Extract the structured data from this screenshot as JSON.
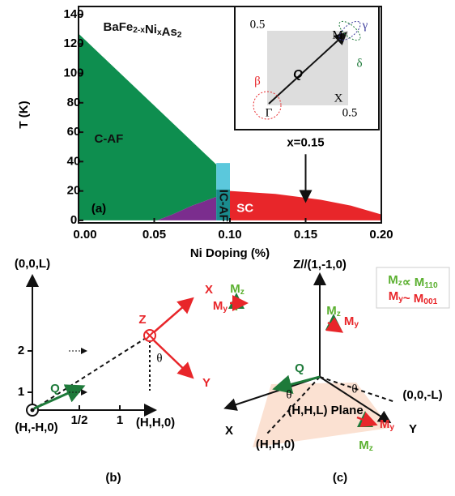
{
  "chart_data": {
    "type": "area",
    "title": [
      {
        "base": "BaFe",
        "sub": "2-x"
      },
      {
        "base": "Ni",
        "sub": "x"
      },
      {
        "base": "As",
        "sub": "2"
      }
    ],
    "panel_label": "(a)",
    "xlabel": "Ni Doping (%)",
    "ylabel": "T (K)",
    "xlim": [
      0,
      0.2
    ],
    "ylim": [
      -1.7,
      145.5
    ],
    "xticks": [
      {
        "value": 0,
        "label": "0.00"
      },
      {
        "value": 0.05,
        "label": "0.05"
      },
      {
        "value": 0.1,
        "label": "0.10"
      },
      {
        "value": 0.15,
        "label": "0.15"
      },
      {
        "value": 0.2,
        "label": "0.20"
      }
    ],
    "yticks": [
      0,
      20,
      40,
      60,
      80,
      100,
      120,
      140
    ],
    "regions": [
      {
        "name": "C-AF",
        "color": "#0e8e4f",
        "x": [
          0,
          0.091,
          0.091,
          0.075,
          0.062,
          0.052,
          0
        ],
        "y": [
          127,
          38,
          16,
          10,
          4,
          0,
          0
        ]
      },
      {
        "color": "#7b2d8e",
        "x": [
          0.052,
          0.062,
          0.075,
          0.091,
          0.091
        ],
        "y": [
          0,
          4,
          10,
          16,
          0
        ]
      },
      {
        "color": "#5bc8dc",
        "x": [
          0.091,
          0.1,
          0.1,
          0.091
        ],
        "y": [
          39,
          39,
          0,
          0
        ]
      },
      {
        "name": "IC-AF",
        "color": "#1b8c8e",
        "x": [
          0.091,
          0.1,
          0.1,
          0.091
        ],
        "y": [
          21,
          21,
          0,
          0
        ]
      },
      {
        "name": "SC",
        "color": "#e8262a",
        "x": [
          0.1,
          0.1,
          0.13,
          0.16,
          0.18,
          0.2,
          0.2
        ],
        "y": [
          0,
          20,
          18,
          14,
          10,
          4,
          0
        ]
      }
    ],
    "annotation": {
      "text": "x=0.15",
      "x": 0.15,
      "y_from": 45,
      "y_to": 14
    }
  },
  "inset": {
    "corner_top": "0.5",
    "m": "M",
    "gamma": "γ",
    "delta": "δ",
    "beta": "β",
    "big_gamma": "Γ",
    "q": "Q",
    "x": "X",
    "corner_right": "0.5"
  },
  "panel_b": {
    "l_axis": "(0,0,L)",
    "tick_2": "2",
    "tick_1": "1",
    "q": "Q",
    "z": "Z",
    "x": "X",
    "y": "Y",
    "theta": "θ",
    "origin": "(H,-H,0)",
    "tick_half": "1/2",
    "tick_h1": "1",
    "h_axis": "(H,H,0)",
    "label": "(b)"
  },
  "panel_c": {
    "z_axis": "Z//(1,-1,0)",
    "legend_1": [
      {
        "base": "M",
        "sub": "z"
      },
      {
        "base": "∝ M",
        "sub": "110"
      }
    ],
    "legend_2": [
      {
        "base": "M",
        "sub": "y"
      },
      {
        "base": "~ M",
        "sub": "001"
      }
    ],
    "mz": {
      "base": "M",
      "sub": "z"
    },
    "my": {
      "base": "M",
      "sub": "y"
    },
    "q": "Q",
    "theta": "θ",
    "l_axis": "(0,0,-L)",
    "x": "X",
    "plane": "(H,H,L) Plane",
    "h_axis": "(H,H,0)",
    "y": "Y",
    "label": "(c)"
  }
}
